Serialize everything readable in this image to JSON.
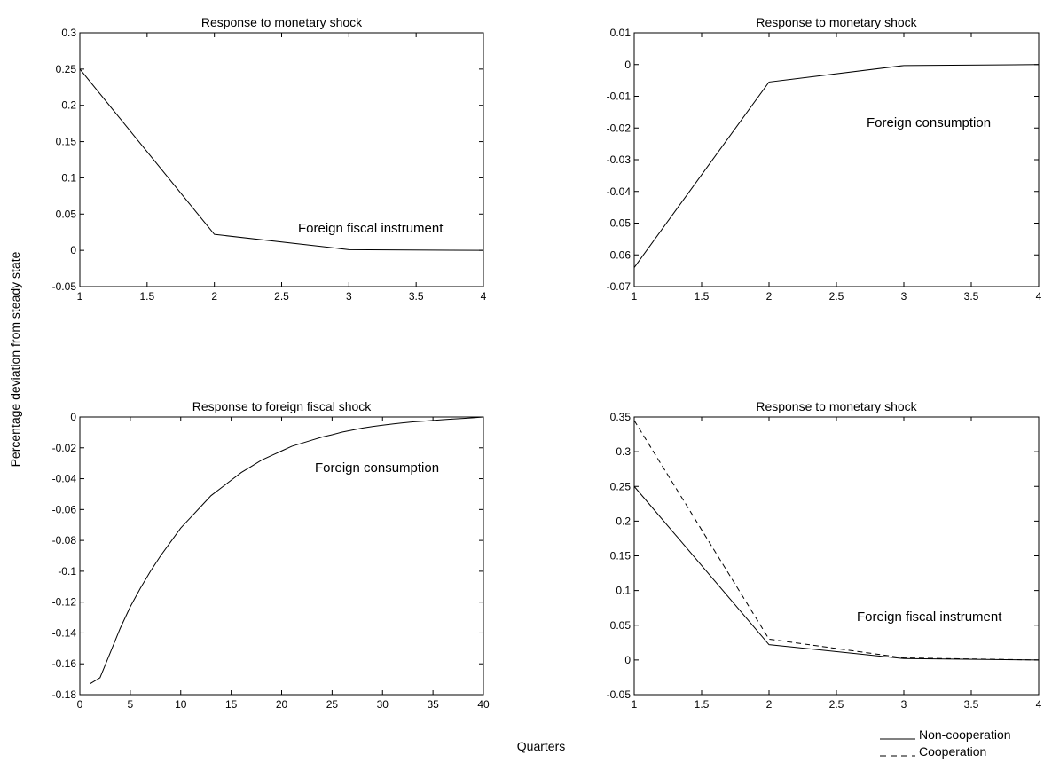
{
  "figure": {
    "ylabel": "Percentage deviation from steady state",
    "xlabel": "Quarters"
  },
  "legend": {
    "entries": [
      {
        "label": "Non-cooperation",
        "style": "solid"
      },
      {
        "label": "Cooperation",
        "style": "dashed"
      }
    ]
  },
  "chart_data": [
    {
      "type": "line",
      "title": "Response to monetary shock",
      "annotation": "Foreign fiscal instrument",
      "xlim": [
        1,
        4
      ],
      "ylim": [
        -0.05,
        0.3
      ],
      "xticks": [
        1,
        1.5,
        2,
        2.5,
        3,
        3.5,
        4
      ],
      "xtick_labels": [
        "1",
        "1.5",
        "2",
        "2.5",
        "3",
        "3.5",
        "4"
      ],
      "yticks": [
        -0.05,
        0,
        0.05,
        0.1,
        0.15,
        0.2,
        0.25,
        0.3
      ],
      "ytick_labels": [
        "-0.05",
        "0",
        "0.05",
        "0.1",
        "0.15",
        "0.2",
        "0.25",
        "0.3"
      ],
      "series": [
        {
          "style": "solid",
          "x": [
            1,
            2,
            3,
            4
          ],
          "y": [
            0.25,
            0.022,
            0.001,
            0.0
          ]
        }
      ]
    },
    {
      "type": "line",
      "title": "Response to monetary shock",
      "annotation": "Foreign consumption",
      "xlim": [
        1,
        4
      ],
      "ylim": [
        -0.07,
        0.01
      ],
      "xticks": [
        1,
        1.5,
        2,
        2.5,
        3,
        3.5,
        4
      ],
      "xtick_labels": [
        "1",
        "1.5",
        "2",
        "2.5",
        "3",
        "3.5",
        "4"
      ],
      "yticks": [
        -0.07,
        -0.06,
        -0.05,
        -0.04,
        -0.03,
        -0.02,
        -0.01,
        0,
        0.01
      ],
      "ytick_labels": [
        "-0.07",
        "-0.06",
        "-0.05",
        "-0.04",
        "-0.03",
        "-0.02",
        "-0.01",
        "0",
        "0.01"
      ],
      "series": [
        {
          "style": "solid",
          "x": [
            1,
            2,
            3,
            4
          ],
          "y": [
            -0.064,
            -0.0055,
            -0.0003,
            0.0
          ]
        }
      ]
    },
    {
      "type": "line",
      "title": "Response to foreign fiscal shock",
      "annotation": "Foreign consumption",
      "xlim": [
        0,
        40
      ],
      "ylim": [
        -0.18,
        0
      ],
      "xticks": [
        0,
        5,
        10,
        15,
        20,
        25,
        30,
        35,
        40
      ],
      "xtick_labels": [
        "0",
        "5",
        "10",
        "15",
        "20",
        "25",
        "30",
        "35",
        "40"
      ],
      "yticks": [
        -0.18,
        -0.16,
        -0.14,
        -0.12,
        -0.1,
        -0.08,
        -0.06,
        -0.04,
        -0.02,
        0
      ],
      "ytick_labels": [
        "-0.18",
        "-0.16",
        "-0.14",
        "-0.12",
        "-0.1",
        "-0.08",
        "-0.06",
        "-0.04",
        "-0.02",
        "0"
      ],
      "series": [
        {
          "style": "solid",
          "x": [
            1,
            2,
            3,
            4,
            5,
            6,
            7,
            8,
            9,
            10,
            11,
            12,
            13,
            14,
            15,
            16,
            17,
            18,
            19,
            20,
            21,
            22,
            23,
            24,
            25,
            26,
            27,
            28,
            29,
            30,
            31,
            32,
            33,
            34,
            35,
            36,
            37,
            38,
            39,
            40
          ],
          "y": [
            -0.173,
            -0.169,
            -0.153,
            -0.137,
            -0.123,
            -0.111,
            -0.1,
            -0.09,
            -0.081,
            -0.072,
            -0.065,
            -0.058,
            -0.051,
            -0.046,
            -0.041,
            -0.036,
            -0.032,
            -0.028,
            -0.025,
            -0.022,
            -0.019,
            -0.017,
            -0.015,
            -0.013,
            -0.0115,
            -0.0098,
            -0.0085,
            -0.0072,
            -0.0062,
            -0.0053,
            -0.0045,
            -0.0038,
            -0.0032,
            -0.0027,
            -0.0022,
            -0.0017,
            -0.0013,
            -0.0009,
            -0.0005,
            0.0
          ]
        }
      ]
    },
    {
      "type": "line",
      "title": "Response to monetary shock",
      "annotation": "Foreign fiscal instrument",
      "xlim": [
        1,
        4
      ],
      "ylim": [
        -0.05,
        0.35
      ],
      "xticks": [
        1,
        1.5,
        2,
        2.5,
        3,
        3.5,
        4
      ],
      "xtick_labels": [
        "1",
        "1.5",
        "2",
        "2.5",
        "3",
        "3.5",
        "4"
      ],
      "yticks": [
        -0.05,
        0,
        0.05,
        0.1,
        0.15,
        0.2,
        0.25,
        0.3,
        0.35
      ],
      "ytick_labels": [
        "-0.05",
        "0",
        "0.05",
        "0.1",
        "0.15",
        "0.2",
        "0.25",
        "0.3",
        "0.35"
      ],
      "series": [
        {
          "name": "Non-cooperation",
          "style": "solid",
          "x": [
            1,
            2,
            3,
            4
          ],
          "y": [
            0.25,
            0.022,
            0.002,
            0.0
          ]
        },
        {
          "name": "Cooperation",
          "style": "dashed",
          "x": [
            1,
            2,
            3,
            4
          ],
          "y": [
            0.345,
            0.03,
            0.003,
            0.0
          ]
        }
      ]
    }
  ]
}
